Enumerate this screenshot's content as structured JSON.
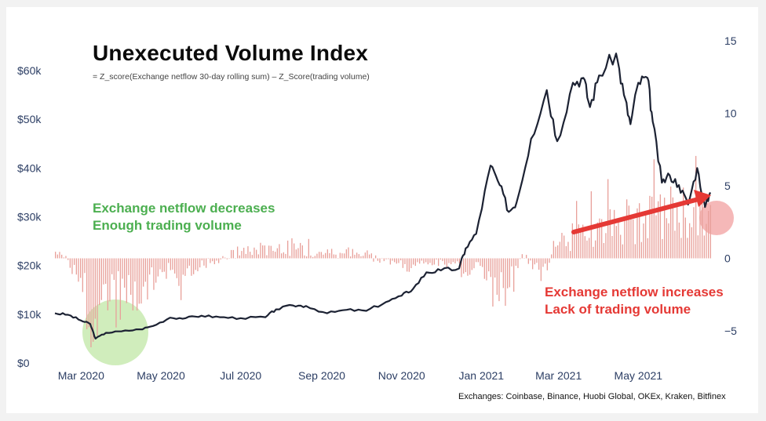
{
  "title": "Unexecuted Volume Index",
  "subtitle": "= Z_score(Exchange netflow 30-day rolling sum) – Z_Score(trading volume)",
  "footnote": "Exchanges: Coinbase, Binance, Huobi Global, OKEx, Kraken, Bitfinex",
  "annotations": {
    "green_line1": "Exchange netflow decreases",
    "green_line2": "Enough trading volume",
    "red_line1": "Exchange netflow increases",
    "red_line2": "Lack of trading volume"
  },
  "colors": {
    "price_line": "#1c2233",
    "bars": "#e8a09a",
    "green_annotation": "#4caf50",
    "red_annotation": "#e53935",
    "green_circle": "#c8eab0",
    "red_circle": "#f2a6a6",
    "axis_text": "#2c3e64"
  },
  "chart_data": {
    "type": "line",
    "title": "Unexecuted Volume Index",
    "x_ticks": [
      "Mar 2020",
      "May 2020",
      "Jul 2020",
      "Sep 2020",
      "Nov 2020",
      "Jan 2021",
      "Mar 2021",
      "May 2021"
    ],
    "x_range": [
      "2020-02-10",
      "2021-06-25"
    ],
    "y_left_ticks": [
      "$0",
      "$10k",
      "$20k",
      "$30k",
      "$40k",
      "$50k",
      "$60k"
    ],
    "y_left_range": [
      0,
      65000
    ],
    "y_right_ticks": [
      "15",
      "10",
      "5",
      "0",
      "−5"
    ],
    "y_right_range": [
      -10,
      15
    ],
    "grid": false,
    "series": [
      {
        "axis": "left",
        "points": [
          [
            "2020-02-10",
            10200
          ],
          [
            "2020-02-20",
            9900
          ],
          [
            "2020-03-01",
            8700
          ],
          [
            "2020-03-08",
            8000
          ],
          [
            "2020-03-12",
            5000
          ],
          [
            "2020-03-20",
            6200
          ],
          [
            "2020-04-01",
            6500
          ],
          [
            "2020-04-15",
            6900
          ],
          [
            "2020-04-25",
            7600
          ],
          [
            "2020-05-08",
            9300
          ],
          [
            "2020-05-20",
            9200
          ],
          [
            "2020-06-01",
            9700
          ],
          [
            "2020-06-15",
            9400
          ],
          [
            "2020-07-01",
            9200
          ],
          [
            "2020-07-20",
            9400
          ],
          [
            "2020-07-28",
            11000
          ],
          [
            "2020-08-10",
            11800
          ],
          [
            "2020-08-20",
            11700
          ],
          [
            "2020-09-05",
            10200
          ],
          [
            "2020-09-20",
            10900
          ],
          [
            "2020-10-05",
            10700
          ],
          [
            "2020-10-20",
            12500
          ],
          [
            "2020-11-01",
            13800
          ],
          [
            "2020-11-10",
            15300
          ],
          [
            "2020-11-20",
            18600
          ],
          [
            "2020-12-01",
            19000
          ],
          [
            "2020-12-15",
            19400
          ],
          [
            "2020-12-20",
            23500
          ],
          [
            "2020-12-28",
            26500
          ],
          [
            "2021-01-08",
            40500
          ],
          [
            "2021-01-15",
            36500
          ],
          [
            "2021-01-22",
            31000
          ],
          [
            "2021-01-28",
            33000
          ],
          [
            "2021-02-08",
            46000
          ],
          [
            "2021-02-20",
            56000
          ],
          [
            "2021-02-28",
            45500
          ],
          [
            "2021-03-12",
            57500
          ],
          [
            "2021-03-20",
            58500
          ],
          [
            "2021-03-25",
            52500
          ],
          [
            "2021-04-01",
            59000
          ],
          [
            "2021-04-14",
            63500
          ],
          [
            "2021-04-20",
            55000
          ],
          [
            "2021-04-25",
            49000
          ],
          [
            "2021-05-01",
            57500
          ],
          [
            "2021-05-08",
            58500
          ],
          [
            "2021-05-12",
            49500
          ],
          [
            "2021-05-19",
            37000
          ],
          [
            "2021-05-25",
            38500
          ],
          [
            "2021-06-01",
            36500
          ],
          [
            "2021-06-08",
            32500
          ],
          [
            "2021-06-15",
            40000
          ],
          [
            "2021-06-21",
            32000
          ],
          [
            "2021-06-25",
            35000
          ]
        ]
      },
      {
        "axis": "right",
        "type": "bar",
        "samples": [
          [
            "2020-02-15",
            0.5
          ],
          [
            "2020-03-01",
            -1.5
          ],
          [
            "2020-03-10",
            -7.0
          ],
          [
            "2020-03-13",
            -4.0
          ],
          [
            "2020-03-20",
            -3.0
          ],
          [
            "2020-04-01",
            -2.0
          ],
          [
            "2020-04-15",
            -3.5
          ],
          [
            "2020-05-01",
            -1.0
          ],
          [
            "2020-05-15",
            -1.5
          ],
          [
            "2020-06-01",
            -0.5
          ],
          [
            "2020-07-01",
            0.5
          ],
          [
            "2020-08-01",
            1.0
          ],
          [
            "2020-09-01",
            0.5
          ],
          [
            "2020-10-01",
            0.4
          ],
          [
            "2020-11-01",
            -0.5
          ],
          [
            "2020-12-01",
            -0.3
          ],
          [
            "2021-01-01",
            -1.0
          ],
          [
            "2021-01-20",
            -2.5
          ],
          [
            "2021-02-01",
            0.5
          ],
          [
            "2021-02-15",
            -1.5
          ],
          [
            "2021-03-01",
            1.5
          ],
          [
            "2021-03-15",
            2.0
          ],
          [
            "2021-04-01",
            2.5
          ],
          [
            "2021-04-15",
            3.0
          ],
          [
            "2021-05-01",
            3.0
          ],
          [
            "2021-05-15",
            3.5
          ],
          [
            "2021-06-01",
            3.8
          ],
          [
            "2021-06-15",
            3.5
          ]
        ]
      }
    ]
  }
}
